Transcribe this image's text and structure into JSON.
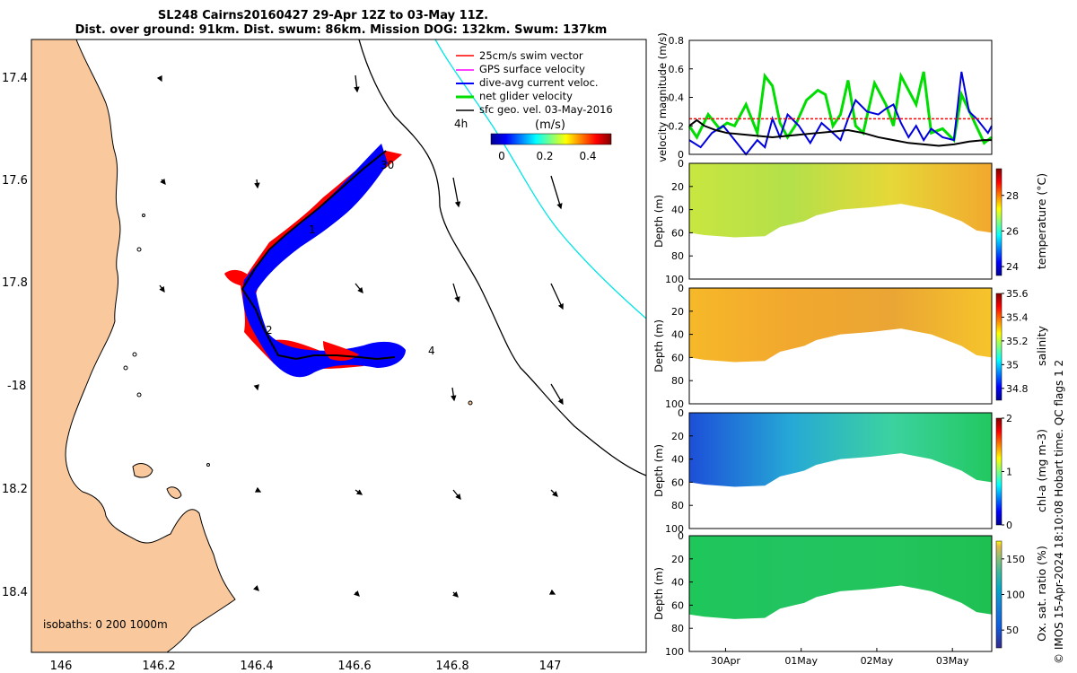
{
  "title": {
    "line1": "SL248 Cairns20160427 29-Apr 12Z to 03-May 11Z.",
    "line2": "Dist. over ground: 91km. Dist. swum: 86km. Mission DOG: 132km. Swum: 137km"
  },
  "map": {
    "lat_ticks": [
      "17.4",
      "17.6",
      "17.8",
      "-18",
      "18.2",
      "18.4"
    ],
    "lon_ticks": [
      "146",
      "146.2",
      "146.4",
      "146.6",
      "146.8",
      "147"
    ],
    "isobaths_label": "isobaths: 0   200  1000m",
    "legend": [
      {
        "label": "25cm/s swim vector",
        "color": "#ff0000"
      },
      {
        "label": "GPS surface velocity",
        "color": "#ff00ff"
      },
      {
        "label": "dive-avg current veloc.",
        "color": "#0000ff"
      },
      {
        "label": "net glider velocity",
        "color": "#00dd00"
      },
      {
        "label": "sfc geo. vel. 03-May-2016",
        "color": "#000000"
      }
    ],
    "scale_label": "4h",
    "colorbar_title": "(m/s)",
    "colorbar_ticks": [
      "0",
      "0.2",
      "0.4"
    ],
    "track_labels": [
      "30",
      "1",
      "2",
      "4"
    ],
    "colors": {
      "land": "#f9c99d",
      "ocean": "#ffffff",
      "track_red": "#ff0000",
      "track_blue": "#0000ff",
      "isobath_cyan": "#00e5e5"
    }
  },
  "chart_data": [
    {
      "type": "line",
      "title": "",
      "ylabel": "velocity magnitude (m/s)",
      "ylim": [
        0,
        0.8
      ],
      "yticks": [
        "0",
        "0.2",
        "0.4",
        "0.6",
        "0.8"
      ],
      "xlim": [
        0,
        4
      ],
      "series": [
        {
          "color": "#00dd00",
          "x": [
            0,
            0.1,
            0.25,
            0.4,
            0.5,
            0.6,
            0.75,
            0.9,
            1.0,
            1.1,
            1.2,
            1.3,
            1.4,
            1.55,
            1.7,
            1.8,
            1.9,
            2.0,
            2.1,
            2.2,
            2.3,
            2.45,
            2.6,
            2.7,
            2.8,
            2.9,
            3.0,
            3.1,
            3.2,
            3.35,
            3.5,
            3.6,
            3.75,
            3.9,
            4.0
          ],
          "y": [
            0.2,
            0.12,
            0.28,
            0.18,
            0.22,
            0.2,
            0.35,
            0.15,
            0.55,
            0.48,
            0.22,
            0.12,
            0.2,
            0.38,
            0.45,
            0.42,
            0.2,
            0.28,
            0.52,
            0.2,
            0.15,
            0.5,
            0.35,
            0.2,
            0.55,
            0.45,
            0.35,
            0.58,
            0.15,
            0.18,
            0.1,
            0.42,
            0.25,
            0.08,
            0.12
          ]
        },
        {
          "color": "#0000dd",
          "x": [
            0,
            0.15,
            0.3,
            0.45,
            0.6,
            0.75,
            0.9,
            1.0,
            1.1,
            1.2,
            1.3,
            1.45,
            1.6,
            1.75,
            1.9,
            2.0,
            2.1,
            2.2,
            2.35,
            2.5,
            2.6,
            2.7,
            2.8,
            2.9,
            3.0,
            3.1,
            3.2,
            3.35,
            3.5,
            3.6,
            3.7,
            3.8,
            3.95,
            4.0
          ],
          "y": [
            0.1,
            0.05,
            0.15,
            0.2,
            0.1,
            0.0,
            0.1,
            0.05,
            0.25,
            0.12,
            0.28,
            0.2,
            0.08,
            0.22,
            0.15,
            0.1,
            0.25,
            0.38,
            0.3,
            0.28,
            0.32,
            0.35,
            0.22,
            0.12,
            0.2,
            0.1,
            0.18,
            0.12,
            0.1,
            0.58,
            0.3,
            0.25,
            0.15,
            0.2
          ]
        },
        {
          "color": "#ff0000",
          "dashed": true,
          "x": [
            0,
            4
          ],
          "y": [
            0.25,
            0.25
          ]
        },
        {
          "color": "#000000",
          "x": [
            0,
            0.1,
            0.2,
            0.35,
            0.5,
            0.7,
            0.9,
            1.1,
            1.3,
            1.5,
            1.7,
            1.9,
            2.1,
            2.3,
            2.5,
            2.7,
            2.9,
            3.1,
            3.3,
            3.5,
            3.7,
            3.9,
            4.0
          ],
          "y": [
            0.2,
            0.24,
            0.2,
            0.17,
            0.15,
            0.14,
            0.13,
            0.12,
            0.13,
            0.14,
            0.15,
            0.16,
            0.17,
            0.15,
            0.12,
            0.1,
            0.08,
            0.07,
            0.06,
            0.07,
            0.09,
            0.1,
            0.1
          ]
        }
      ]
    },
    {
      "type": "heatmap",
      "ylabel": "Depth (m)",
      "colorbar_label": "temperature (°C)",
      "colorbar_ticks": [
        "24",
        "26",
        "28"
      ],
      "clim": [
        23.5,
        29.5
      ],
      "depth_ticks": [
        "0",
        "20",
        "40",
        "60",
        "80",
        "100"
      ]
    },
    {
      "type": "heatmap",
      "ylabel": "Depth (m)",
      "colorbar_label": "salinity",
      "colorbar_ticks": [
        "34.8",
        "35",
        "35.2",
        "35.4",
        "35.6"
      ],
      "clim": [
        34.7,
        35.6
      ],
      "depth_ticks": [
        "0",
        "20",
        "40",
        "60",
        "80",
        "100"
      ]
    },
    {
      "type": "heatmap",
      "ylabel": "Depth (m)",
      "colorbar_label": "chl-a (mg m-3)",
      "colorbar_ticks": [
        "0",
        "1",
        "2"
      ],
      "clim": [
        0,
        2
      ],
      "depth_ticks": [
        "0",
        "20",
        "40",
        "60",
        "80",
        "100"
      ]
    },
    {
      "type": "heatmap",
      "ylabel": "Depth (m)",
      "colorbar_label": "Ox. sat. ratio (%)",
      "colorbar_ticks": [
        "50",
        "100",
        "150"
      ],
      "clim": [
        25,
        175
      ],
      "depth_ticks": [
        "0",
        "20",
        "40",
        "60",
        "80",
        "100"
      ],
      "x_ticks": [
        "30Apr",
        "01May",
        "02May",
        "03May"
      ]
    }
  ],
  "side_note": "© IMOS 15-Apr-2024 18:10:08 Hobart time. QC flags 1  2"
}
